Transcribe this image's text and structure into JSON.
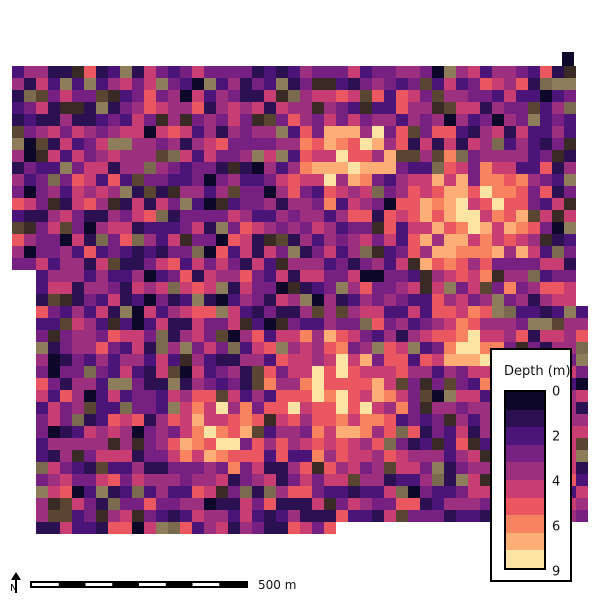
{
  "map": {
    "legend": {
      "title": "Depth (m)",
      "ticks": [
        "0",
        "2",
        "4",
        "6",
        "9"
      ],
      "palette": [
        "#0d0829",
        "#2c1152",
        "#4b1478",
        "#762181",
        "#9d2f7f",
        "#c83e73",
        "#eb5760",
        "#f8845f",
        "#fdae77",
        "#fde4a5"
      ]
    },
    "scale_bar": {
      "label": "500 m"
    },
    "north_arrow": {
      "label": "N"
    }
  }
}
